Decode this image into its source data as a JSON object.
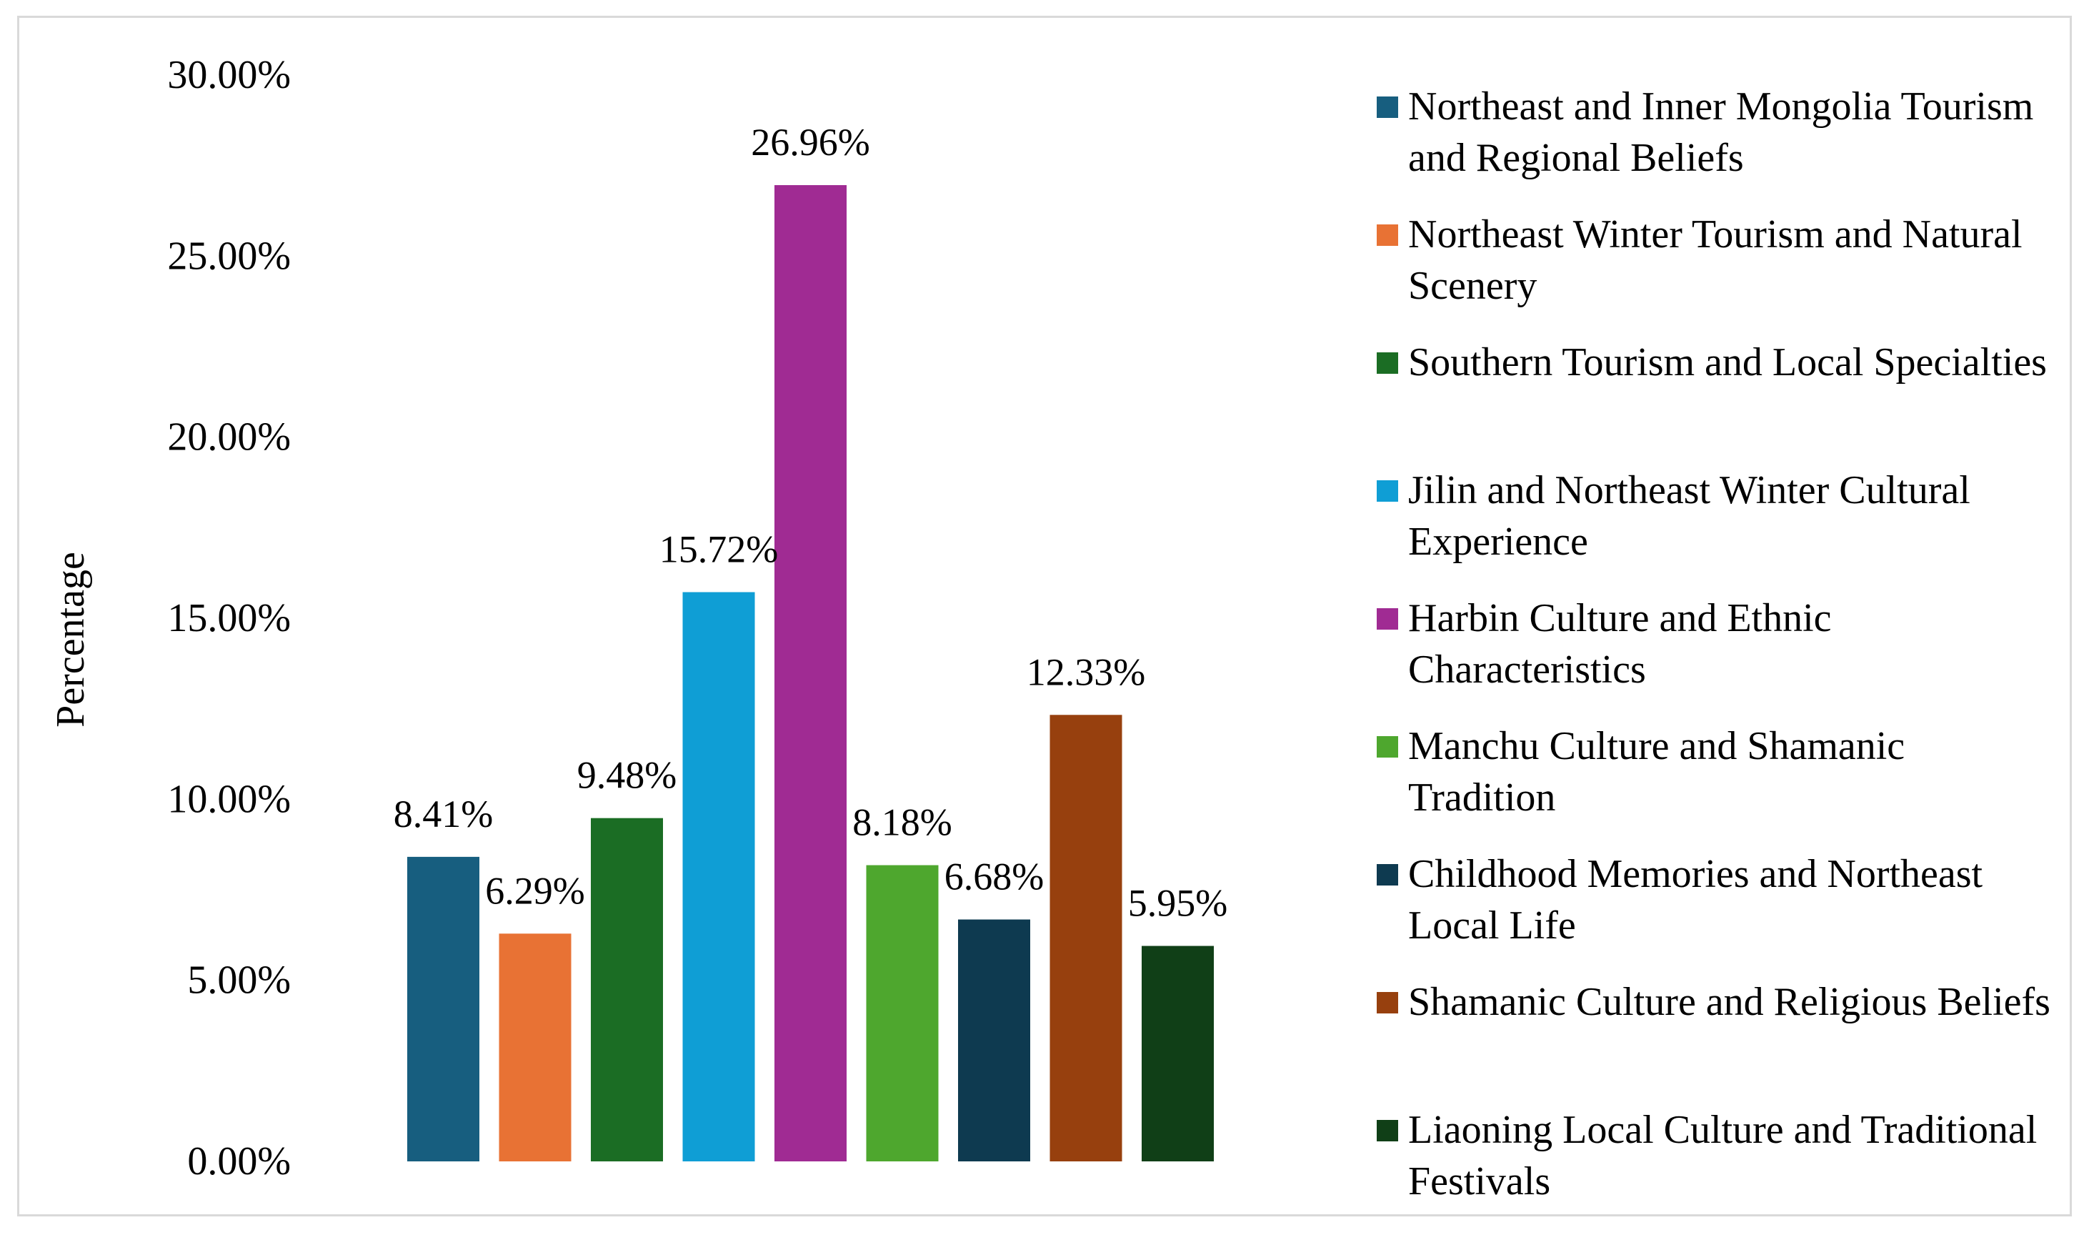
{
  "chart_data": {
    "type": "bar",
    "title": "",
    "xlabel": "",
    "ylabel": "Percentage",
    "ylim": [
      0,
      30
    ],
    "yticks": [
      "0.00%",
      "5.00%",
      "10.00%",
      "15.00%",
      "20.00%",
      "25.00%",
      "30.00%"
    ],
    "ytick_values": [
      0,
      5,
      10,
      15,
      20,
      25,
      30
    ],
    "legend_position": "right",
    "grid": false,
    "categories": [
      "Northeast and Inner Mongolia Tourism and Regional Beliefs",
      "Northeast Winter Tourism and Natural Scenery",
      "Southern Tourism and Local Specialties",
      "Jilin and Northeast Winter Cultural Experience",
      "Harbin Culture and Ethnic Characteristics",
      "Manchu Culture and Shamanic Tradition",
      "Childhood Memories and Northeast Local Life",
      "Shamanic Culture and Religious Beliefs",
      "Liaoning Local Culture and Traditional Festivals"
    ],
    "values": [
      8.41,
      6.29,
      9.48,
      15.72,
      26.96,
      8.18,
      6.68,
      12.33,
      5.95
    ],
    "value_labels": [
      "8.41%",
      "6.29%",
      "9.48%",
      "15.72%",
      "26.96%",
      "8.18%",
      "6.68%",
      "12.33%",
      "5.95%"
    ],
    "colors": [
      "#175e7f",
      "#e87234",
      "#1b6d24",
      "#0f9ed5",
      "#a02b93",
      "#4ea72e",
      "#0e3a50",
      "#97400e",
      "#103f17"
    ]
  }
}
